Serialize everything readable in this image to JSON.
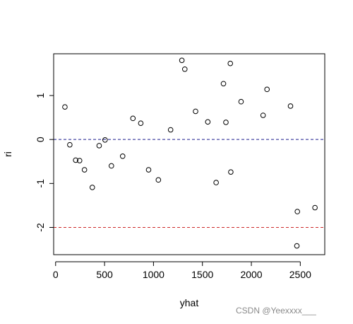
{
  "chart_data": {
    "type": "scatter",
    "xlabel": "yhat",
    "ylabel": "ri",
    "xlim": [
      -20,
      2750
    ],
    "ylim": [
      -2.62,
      1.95
    ],
    "x_ticks": [
      0,
      500,
      1000,
      1500,
      2000,
      2500
    ],
    "x_tick_labels": [
      "0",
      "500",
      "1000",
      "1500",
      "2000",
      "2500"
    ],
    "y_ticks": [
      -2,
      -1,
      0,
      1
    ],
    "y_tick_labels": [
      "-2",
      "-1",
      "0",
      "1"
    ],
    "reference_lines": [
      {
        "y": 0,
        "color": "#1a1a8c",
        "style": "dashed"
      },
      {
        "y": -2,
        "color": "#cc2a2a",
        "style": "dashed"
      }
    ],
    "point_style": "open-circle",
    "grid": false,
    "points": [
      {
        "x": 95,
        "y": 0.74
      },
      {
        "x": 145,
        "y": -0.12
      },
      {
        "x": 205,
        "y": -0.47
      },
      {
        "x": 245,
        "y": -0.48
      },
      {
        "x": 295,
        "y": -0.69
      },
      {
        "x": 375,
        "y": -1.09
      },
      {
        "x": 445,
        "y": -0.14
      },
      {
        "x": 505,
        "y": -0.01
      },
      {
        "x": 570,
        "y": -0.6
      },
      {
        "x": 685,
        "y": -0.38
      },
      {
        "x": 790,
        "y": 0.48
      },
      {
        "x": 870,
        "y": 0.37
      },
      {
        "x": 950,
        "y": -0.69
      },
      {
        "x": 1050,
        "y": -0.92
      },
      {
        "x": 1175,
        "y": 0.22
      },
      {
        "x": 1290,
        "y": 1.8
      },
      {
        "x": 1320,
        "y": 1.6
      },
      {
        "x": 1430,
        "y": 0.64
      },
      {
        "x": 1555,
        "y": 0.4
      },
      {
        "x": 1640,
        "y": -0.98
      },
      {
        "x": 1715,
        "y": 1.27
      },
      {
        "x": 1740,
        "y": 0.39
      },
      {
        "x": 1785,
        "y": 1.73
      },
      {
        "x": 1790,
        "y": -0.74
      },
      {
        "x": 1895,
        "y": 0.86
      },
      {
        "x": 2120,
        "y": 0.55
      },
      {
        "x": 2160,
        "y": 1.14
      },
      {
        "x": 2400,
        "y": 0.76
      },
      {
        "x": 2470,
        "y": -1.64
      },
      {
        "x": 2465,
        "y": -2.42
      },
      {
        "x": 2650,
        "y": -1.55
      }
    ]
  },
  "watermark": "CSDN @Yeexxxx___"
}
